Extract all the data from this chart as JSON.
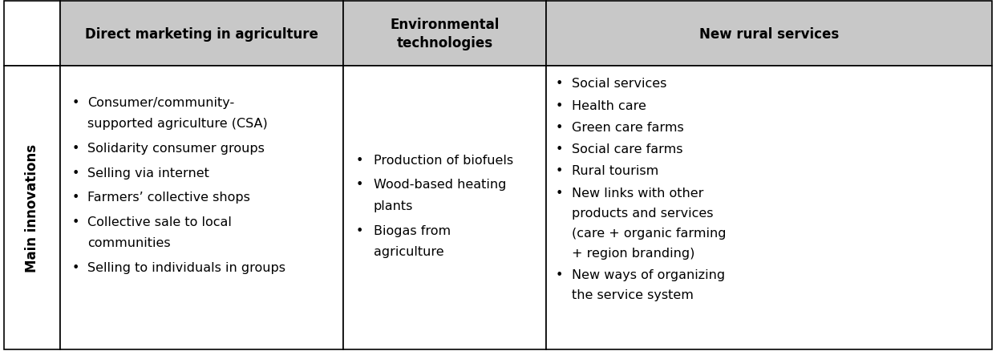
{
  "header_row": [
    "",
    "Direct marketing in agriculture",
    "Environmental\ntechnologies",
    "New rural services"
  ],
  "row_label": "Main innovations",
  "col1_items": [
    "Consumer/community-\nsupported agriculture (CSA)",
    "Solidarity consumer groups",
    "Selling via internet",
    "Farmers’ collective shops",
    "Collective sale to local\ncommunities",
    "Selling to individuals in groups"
  ],
  "col2_items": [
    "Production of biofuels",
    "Wood-based heating\nplants",
    "Biogas from\nagriculture"
  ],
  "col3_items": [
    "Social services",
    "Health care",
    "Green care farms",
    "Social care farms",
    "Rural tourism",
    "New links with other\nproducts and services\n(care + organic farming\n+ region branding)",
    "New ways of organizing\nthe service system"
  ],
  "header_bg": "#c8c8c8",
  "cell_bg": "#ffffff",
  "border_color": "#000000",
  "header_fontsize": 12,
  "cell_fontsize": 11.5,
  "label_fontsize": 12,
  "fig_width": 12.42,
  "fig_height": 4.39
}
